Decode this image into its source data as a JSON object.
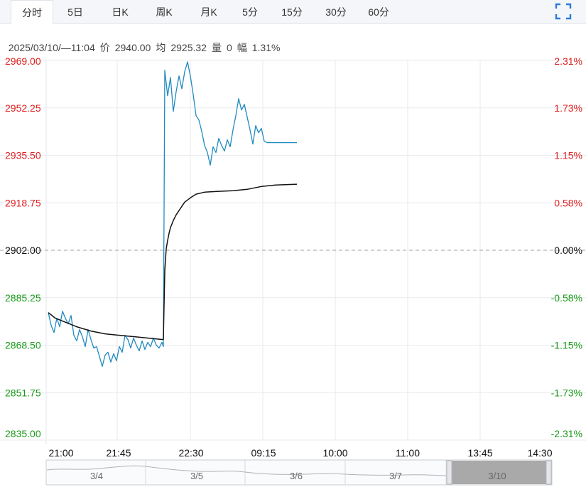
{
  "tabs": [
    {
      "label": "分时",
      "active": true
    },
    {
      "label": "5日",
      "active": false
    },
    {
      "label": "日K",
      "active": false
    },
    {
      "label": "周K",
      "active": false
    },
    {
      "label": "月K",
      "active": false
    },
    {
      "label": "5分",
      "active": false
    },
    {
      "label": "15分",
      "active": false
    },
    {
      "label": "30分",
      "active": false
    },
    {
      "label": "60分",
      "active": false
    }
  ],
  "info": {
    "datetime": "2025/03/10/—11:04",
    "price_label": "价",
    "price": "2940.00",
    "avg_label": "均",
    "avg": "2925.32",
    "vol_label": "量",
    "vol": "0",
    "range_label": "幅",
    "range": "1.31%"
  },
  "colors": {
    "up": "#e02020",
    "down": "#1a9a1a",
    "neutral": "#111111",
    "price_line": "#1f8ac0",
    "avg_line": "#111111",
    "grid": "#e8eaee"
  },
  "chart_data": {
    "type": "line",
    "title": "",
    "ref_price": 2902.0,
    "ylim": [
      2835.0,
      2969.0
    ],
    "price_ticks": [
      "2969.00",
      "2952.25",
      "2935.50",
      "2918.75",
      "2902.00",
      "2885.25",
      "2868.50",
      "2851.75",
      "2835.00"
    ],
    "pct_ticks": [
      "2.31%",
      "1.73%",
      "1.15%",
      "0.58%",
      "0.00%",
      "-0.58%",
      "-1.15%",
      "-1.73%",
      "-2.31%"
    ],
    "x_ticks": [
      "21:00",
      "21:45",
      "22:30",
      "09:15",
      "10:00",
      "11:00",
      "13:45",
      "14:30"
    ],
    "session_break_after_index": 80,
    "total_slots": 250,
    "series": [
      {
        "key": "price",
        "x_index": [
          0,
          2,
          4,
          6,
          8,
          10,
          12,
          14,
          16,
          18,
          20,
          22,
          24,
          26,
          28,
          30,
          32,
          34,
          36,
          38,
          40,
          42,
          44,
          46,
          48,
          50,
          52,
          54,
          56,
          58,
          60,
          62,
          64,
          66,
          68,
          70,
          72,
          74,
          76,
          78,
          80,
          81,
          82,
          84,
          86,
          88,
          90,
          92,
          94,
          96,
          98,
          100,
          102,
          104,
          106,
          108,
          110,
          112,
          114,
          116,
          118,
          120,
          122,
          124,
          126,
          128,
          130,
          132,
          134,
          136,
          138,
          140,
          142,
          144,
          146,
          148,
          150,
          152,
          154,
          156,
          158,
          160,
          162,
          164,
          166,
          168,
          170,
          172,
          174,
          175
        ],
        "values": [
          2880.0,
          2875.5,
          2873.0,
          2878.0,
          2875.0,
          2880.5,
          2878.0,
          2876.0,
          2879.0,
          2872.0,
          2870.0,
          2874.0,
          2871.5,
          2868.0,
          2874.0,
          2870.5,
          2867.5,
          2868.0,
          2864.5,
          2861.0,
          2865.0,
          2866.0,
          2862.5,
          2865.5,
          2863.0,
          2868.0,
          2866.0,
          2872.0,
          2870.5,
          2867.5,
          2871.0,
          2868.5,
          2866.5,
          2870.0,
          2867.0,
          2869.5,
          2868.0,
          2871.0,
          2868.5,
          2867.5,
          2869.5,
          2868.0,
          2965.5,
          2956.5,
          2963.0,
          2951.0,
          2958.0,
          2963.5,
          2959.0,
          2965.0,
          2968.5,
          2963.5,
          2957.0,
          2949.5,
          2948.0,
          2944.0,
          2939.0,
          2936.5,
          2932.0,
          2938.5,
          2936.5,
          2941.5,
          2939.0,
          2937.0,
          2941.0,
          2938.5,
          2944.5,
          2949.5,
          2955.5,
          2951.5,
          2953.5,
          2949.0,
          2944.5,
          2939.5,
          2946.0,
          2943.5,
          2945.0,
          2940.5,
          2940.0,
          2940.0,
          2940.0,
          2940.0,
          2940.0,
          2940.0,
          2940.0,
          2940.0,
          2940.0,
          2940.0,
          2940.0,
          2940.0
        ]
      },
      {
        "key": "avg",
        "x_index": [
          0,
          5,
          10,
          15,
          20,
          30,
          40,
          50,
          60,
          70,
          80,
          81,
          82,
          83,
          84,
          85,
          86,
          88,
          90,
          92,
          94,
          96,
          100,
          104,
          110,
          120,
          130,
          140,
          150,
          160,
          170,
          175
        ],
        "values": [
          2880.0,
          2878.0,
          2877.0,
          2876.0,
          2875.0,
          2873.5,
          2872.5,
          2872.0,
          2871.5,
          2871.0,
          2870.5,
          2870.5,
          2895.0,
          2902.5,
          2905.5,
          2908.0,
          2910.0,
          2912.5,
          2914.5,
          2916.0,
          2917.5,
          2919.0,
          2920.5,
          2921.8,
          2922.5,
          2922.8,
          2923.0,
          2923.5,
          2924.5,
          2925.0,
          2925.2,
          2925.32
        ]
      }
    ]
  },
  "navigator": {
    "days": [
      "3/4",
      "3/5",
      "3/6",
      "3/7",
      "3/10"
    ]
  }
}
